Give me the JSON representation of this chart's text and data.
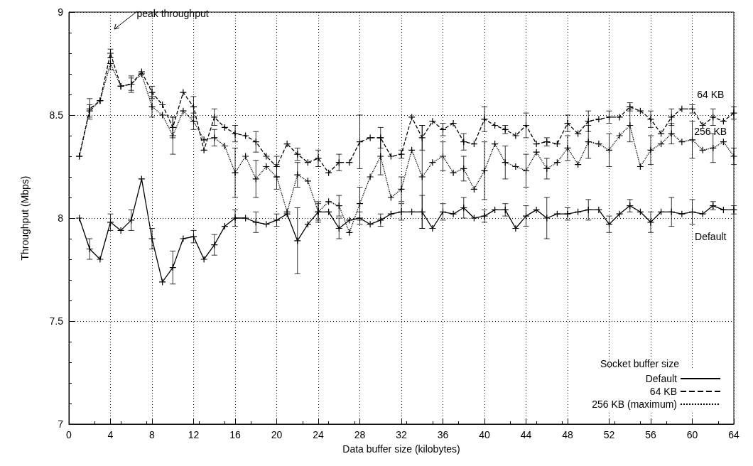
{
  "chart_data": {
    "type": "line",
    "xlabel": "Data buffer size (kilobytes)",
    "ylabel": "Throughput (Mbps)",
    "legend_title": "Socket buffer size",
    "x": [
      1,
      2,
      3,
      4,
      5,
      6,
      7,
      8,
      9,
      10,
      11,
      12,
      13,
      14,
      15,
      16,
      17,
      18,
      19,
      20,
      21,
      22,
      23,
      24,
      25,
      26,
      27,
      28,
      29,
      30,
      31,
      32,
      33,
      34,
      35,
      36,
      37,
      38,
      39,
      40,
      41,
      42,
      43,
      44,
      45,
      46,
      47,
      48,
      49,
      50,
      51,
      52,
      53,
      54,
      55,
      56,
      57,
      58,
      59,
      60,
      61,
      62,
      63,
      64
    ],
    "series": [
      {
        "name": "Default",
        "color": "#000000",
        "line_style": "solid",
        "marker": "cross",
        "values": [
          8.0,
          7.85,
          7.8,
          7.98,
          7.94,
          7.99,
          8.19,
          7.9,
          7.69,
          7.76,
          7.9,
          7.91,
          7.8,
          7.87,
          7.96,
          8.0,
          8.0,
          7.98,
          7.97,
          7.99,
          8.02,
          7.89,
          7.97,
          8.03,
          8.03,
          7.95,
          7.99,
          8.0,
          7.97,
          7.99,
          8.02,
          8.03,
          8.03,
          8.03,
          7.95,
          8.03,
          8.02,
          8.05,
          8.0,
          8.01,
          8.04,
          8.04,
          7.95,
          8.01,
          8.04,
          8.0,
          8.02,
          8.02,
          8.03,
          8.04,
          8.04,
          7.97,
          8.02,
          8.06,
          8.03,
          7.98,
          8.03,
          8.03,
          8.02,
          8.03,
          8.02,
          8.06,
          8.04,
          8.04
        ],
        "errors": [
          null,
          0.05,
          null,
          0.04,
          null,
          0.05,
          null,
          0.05,
          null,
          0.08,
          null,
          0.03,
          null,
          0.05,
          null,
          0.04,
          null,
          0.05,
          null,
          0.03,
          null,
          0.16,
          null,
          0.05,
          null,
          0.05,
          null,
          0.03,
          null,
          0.03,
          null,
          0.04,
          null,
          0.08,
          null,
          0.04,
          null,
          0.05,
          null,
          0.03,
          null,
          0.03,
          null,
          0.05,
          null,
          0.1,
          null,
          0.03,
          null,
          0.05,
          null,
          0.04,
          null,
          0.03,
          null,
          0.05,
          null,
          0.07,
          null,
          0.06,
          null,
          0.02,
          null,
          0.02
        ]
      },
      {
        "name": "64 KB",
        "color": "#000000",
        "line_style": "dashed",
        "marker": "cross",
        "values": [
          8.3,
          8.53,
          8.57,
          8.8,
          8.64,
          8.65,
          8.71,
          8.61,
          8.55,
          8.44,
          8.61,
          8.54,
          8.33,
          8.49,
          8.44,
          8.41,
          8.4,
          8.37,
          8.3,
          8.25,
          8.36,
          8.31,
          8.27,
          8.29,
          8.22,
          8.27,
          8.27,
          8.37,
          8.39,
          8.39,
          8.3,
          8.31,
          8.49,
          8.39,
          8.47,
          8.43,
          8.46,
          8.37,
          8.36,
          8.48,
          8.45,
          8.43,
          8.4,
          8.45,
          8.36,
          8.37,
          8.36,
          8.46,
          8.41,
          8.47,
          8.48,
          8.49,
          8.49,
          8.54,
          8.52,
          8.48,
          8.41,
          8.49,
          8.53,
          8.53,
          8.45,
          8.49,
          8.47,
          8.51
        ],
        "errors": [
          null,
          0.05,
          null,
          0.02,
          null,
          0.04,
          null,
          0.03,
          null,
          0.05,
          null,
          0.05,
          null,
          0.04,
          null,
          0.04,
          null,
          0.05,
          null,
          0.05,
          null,
          0.03,
          null,
          0.04,
          null,
          0.04,
          null,
          0.13,
          null,
          0.05,
          null,
          0.02,
          null,
          0.06,
          null,
          0.03,
          null,
          0.04,
          null,
          0.06,
          null,
          0.02,
          null,
          0.06,
          null,
          0.02,
          null,
          0.04,
          null,
          0.05,
          null,
          0.03,
          null,
          0.02,
          null,
          0.04,
          null,
          0.04,
          null,
          0.02,
          null,
          0.04,
          null,
          0.03
        ]
      },
      {
        "name": "256 KB (maximum)",
        "color": "#000000",
        "line_style": "dotted",
        "marker": "cross",
        "values": [
          8.3,
          8.52,
          8.57,
          8.75,
          8.64,
          8.65,
          8.7,
          8.54,
          8.5,
          8.4,
          8.52,
          8.47,
          8.38,
          8.39,
          8.35,
          8.22,
          8.3,
          8.19,
          8.25,
          8.2,
          8.03,
          8.21,
          8.18,
          8.03,
          8.08,
          8.06,
          7.93,
          8.07,
          8.2,
          8.3,
          8.1,
          8.14,
          8.33,
          8.2,
          8.27,
          8.3,
          8.22,
          8.24,
          8.14,
          8.23,
          8.36,
          8.27,
          8.25,
          8.23,
          8.32,
          8.24,
          8.27,
          8.34,
          8.26,
          8.37,
          8.36,
          8.33,
          8.4,
          8.45,
          8.25,
          8.33,
          8.36,
          8.41,
          8.37,
          8.38,
          8.33,
          8.34,
          8.37,
          8.3
        ],
        "errors": [
          null,
          0.03,
          null,
          0.03,
          null,
          0.03,
          null,
          0.05,
          null,
          0.09,
          null,
          0.04,
          null,
          0.04,
          null,
          0.12,
          null,
          0.09,
          null,
          0.06,
          null,
          0.06,
          null,
          0.04,
          null,
          0.05,
          null,
          0.08,
          null,
          0.09,
          null,
          0.06,
          null,
          0.25,
          null,
          0.07,
          null,
          0.06,
          null,
          0.14,
          null,
          0.08,
          null,
          0.08,
          null,
          0.05,
          null,
          0.06,
          null,
          0.08,
          null,
          0.08,
          null,
          0.08,
          null,
          0.07,
          null,
          0.05,
          null,
          0.09,
          null,
          0.07,
          null,
          0.04
        ]
      }
    ],
    "xlim": [
      0,
      64
    ],
    "xticks": [
      0,
      4,
      8,
      12,
      16,
      20,
      24,
      28,
      32,
      36,
      40,
      44,
      48,
      52,
      56,
      60,
      64
    ],
    "ylim": [
      7,
      9
    ],
    "yticks": [
      7,
      7.5,
      8,
      8.5,
      9
    ],
    "grid": true,
    "legend": "bottom right",
    "annotations": [
      "peak throughput",
      "64 KB",
      "256 KB",
      "Default"
    ]
  }
}
